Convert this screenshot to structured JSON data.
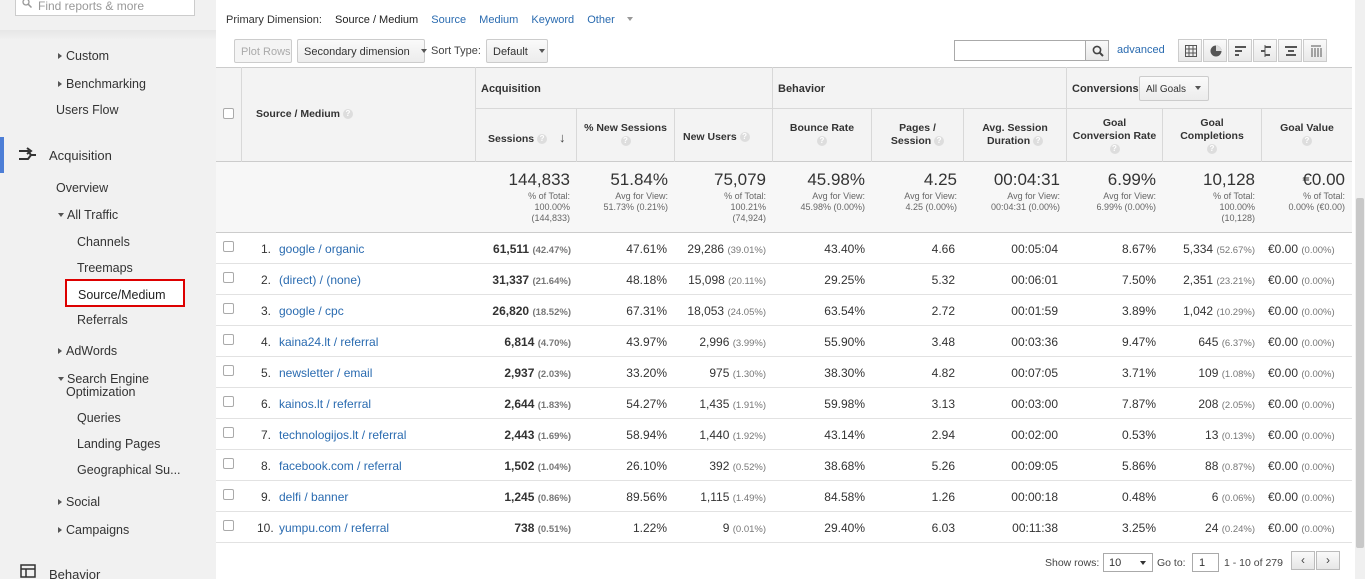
{
  "sidebar": {
    "search_placeholder": "Find reports & more",
    "custom": "Custom",
    "benchmarking": "Benchmarking",
    "users_flow": "Users Flow",
    "acquisition": "Acquisition",
    "overview": "Overview",
    "all_traffic": "All Traffic",
    "channels": "Channels",
    "treemaps": "Treemaps",
    "source_medium": "Source/Medium",
    "referrals": "Referrals",
    "adwords": "AdWords",
    "seo_line1": "Search Engine",
    "seo_line2": "Optimization",
    "queries": "Queries",
    "landing_pages": "Landing Pages",
    "geographical": "Geographical Su...",
    "social": "Social",
    "campaigns": "Campaigns",
    "behavior": "Behavior"
  },
  "dimension_row": {
    "label": "Primary Dimension:",
    "active": "Source / Medium",
    "options": [
      "Source",
      "Medium",
      "Keyword",
      "Other"
    ]
  },
  "toolbar": {
    "plot_rows": "Plot Rows",
    "secondary_dimension": "Secondary dimension",
    "sort_type_label": "Sort Type:",
    "sort_type_value": "Default",
    "advanced": "advanced",
    "view_icons": [
      "table-view-icon",
      "pie-view-icon",
      "performance-view-icon",
      "comparison-view-icon",
      "term-cloud-icon",
      "pivot-view-icon"
    ]
  },
  "table": {
    "source_medium_header": "Source / Medium",
    "groups": {
      "acquisition": "Acquisition",
      "behavior": "Behavior",
      "conversions": "Conversions",
      "goals_select": "All Goals"
    },
    "columns": {
      "sessions": "Sessions",
      "new_sessions": "% New Sessions",
      "new_users": "New Users",
      "bounce_rate": "Bounce Rate",
      "pages_session_1": "Pages /",
      "pages_session_2": "Session",
      "avg_duration_1": "Avg. Session",
      "avg_duration_2": "Duration",
      "goal_conv_1": "Goal",
      "goal_conv_2": "Conversion Rate",
      "goal_comp_1": "Goal",
      "goal_comp_2": "Completions",
      "goal_value": "Goal Value"
    },
    "totals": {
      "sessions": {
        "big": "144,833",
        "l1": "% of Total:",
        "l2": "100.00%",
        "l3": "(144,833)"
      },
      "new_sessions": {
        "big": "51.84%",
        "l1": "Avg for View:",
        "l2": "51.73% (0.21%)"
      },
      "new_users": {
        "big": "75,079",
        "l1": "% of Total:",
        "l2": "100.21%",
        "l3": "(74,924)"
      },
      "bounce_rate": {
        "big": "45.98%",
        "l1": "Avg for View:",
        "l2": "45.98% (0.00%)"
      },
      "pages_session": {
        "big": "4.25",
        "l1": "Avg for View:",
        "l2": "4.25 (0.00%)"
      },
      "avg_duration": {
        "big": "00:04:31",
        "l1": "Avg for View:",
        "l2": "00:04:31 (0.00%)"
      },
      "goal_conv": {
        "big": "6.99%",
        "l1": "Avg for View:",
        "l2": "6.99% (0.00%)"
      },
      "goal_comp": {
        "big": "10,128",
        "l1": "% of Total:",
        "l2": "100.00%",
        "l3": "(10,128)"
      },
      "goal_value": {
        "big": "€0.00",
        "l1": "% of Total:",
        "l2": "0.00% (€0.00)"
      }
    },
    "rows": [
      {
        "num": "1.",
        "source": "google / organic",
        "sessions": "61,511",
        "sessions_pct": "(42.47%)",
        "new_sessions": "47.61%",
        "new_users": "29,286",
        "new_users_pct": "(39.01%)",
        "bounce": "43.40%",
        "pages": "4.66",
        "duration": "00:05:04",
        "conv": "8.67%",
        "comp": "5,334",
        "comp_pct": "(52.67%)",
        "value": "€0.00",
        "value_pct": "(0.00%)"
      },
      {
        "num": "2.",
        "source": "(direct) / (none)",
        "sessions": "31,337",
        "sessions_pct": "(21.64%)",
        "new_sessions": "48.18%",
        "new_users": "15,098",
        "new_users_pct": "(20.11%)",
        "bounce": "29.25%",
        "pages": "5.32",
        "duration": "00:06:01",
        "conv": "7.50%",
        "comp": "2,351",
        "comp_pct": "(23.21%)",
        "value": "€0.00",
        "value_pct": "(0.00%)"
      },
      {
        "num": "3.",
        "source": "google / cpc",
        "sessions": "26,820",
        "sessions_pct": "(18.52%)",
        "new_sessions": "67.31%",
        "new_users": "18,053",
        "new_users_pct": "(24.05%)",
        "bounce": "63.54%",
        "pages": "2.72",
        "duration": "00:01:59",
        "conv": "3.89%",
        "comp": "1,042",
        "comp_pct": "(10.29%)",
        "value": "€0.00",
        "value_pct": "(0.00%)"
      },
      {
        "num": "4.",
        "source": "kaina24.lt / referral",
        "sessions": "6,814",
        "sessions_pct": "(4.70%)",
        "new_sessions": "43.97%",
        "new_users": "2,996",
        "new_users_pct": "(3.99%)",
        "bounce": "55.90%",
        "pages": "3.48",
        "duration": "00:03:36",
        "conv": "9.47%",
        "comp": "645",
        "comp_pct": "(6.37%)",
        "value": "€0.00",
        "value_pct": "(0.00%)"
      },
      {
        "num": "5.",
        "source": "newsletter / email",
        "sessions": "2,937",
        "sessions_pct": "(2.03%)",
        "new_sessions": "33.20%",
        "new_users": "975",
        "new_users_pct": "(1.30%)",
        "bounce": "38.30%",
        "pages": "4.82",
        "duration": "00:07:05",
        "conv": "3.71%",
        "comp": "109",
        "comp_pct": "(1.08%)",
        "value": "€0.00",
        "value_pct": "(0.00%)"
      },
      {
        "num": "6.",
        "source": "kainos.lt / referral",
        "sessions": "2,644",
        "sessions_pct": "(1.83%)",
        "new_sessions": "54.27%",
        "new_users": "1,435",
        "new_users_pct": "(1.91%)",
        "bounce": "59.98%",
        "pages": "3.13",
        "duration": "00:03:00",
        "conv": "7.87%",
        "comp": "208",
        "comp_pct": "(2.05%)",
        "value": "€0.00",
        "value_pct": "(0.00%)"
      },
      {
        "num": "7.",
        "source": "technologijos.lt / referral",
        "sessions": "2,443",
        "sessions_pct": "(1.69%)",
        "new_sessions": "58.94%",
        "new_users": "1,440",
        "new_users_pct": "(1.92%)",
        "bounce": "43.14%",
        "pages": "2.94",
        "duration": "00:02:00",
        "conv": "0.53%",
        "comp": "13",
        "comp_pct": "(0.13%)",
        "value": "€0.00",
        "value_pct": "(0.00%)"
      },
      {
        "num": "8.",
        "source": "facebook.com / referral",
        "sessions": "1,502",
        "sessions_pct": "(1.04%)",
        "new_sessions": "26.10%",
        "new_users": "392",
        "new_users_pct": "(0.52%)",
        "bounce": "38.68%",
        "pages": "5.26",
        "duration": "00:09:05",
        "conv": "5.86%",
        "comp": "88",
        "comp_pct": "(0.87%)",
        "value": "€0.00",
        "value_pct": "(0.00%)"
      },
      {
        "num": "9.",
        "source": "delfi / banner",
        "sessions": "1,245",
        "sessions_pct": "(0.86%)",
        "new_sessions": "89.56%",
        "new_users": "1,115",
        "new_users_pct": "(1.49%)",
        "bounce": "84.58%",
        "pages": "1.26",
        "duration": "00:00:18",
        "conv": "0.48%",
        "comp": "6",
        "comp_pct": "(0.06%)",
        "value": "€0.00",
        "value_pct": "(0.00%)"
      },
      {
        "num": "10.",
        "source": "yumpu.com / referral",
        "sessions": "738",
        "sessions_pct": "(0.51%)",
        "new_sessions": "1.22%",
        "new_users": "9",
        "new_users_pct": "(0.01%)",
        "bounce": "29.40%",
        "pages": "6.03",
        "duration": "00:11:38",
        "conv": "3.25%",
        "comp": "24",
        "comp_pct": "(0.24%)",
        "value": "€0.00",
        "value_pct": "(0.00%)"
      }
    ]
  },
  "footer": {
    "show_rows_label": "Show rows:",
    "show_rows_value": "10",
    "goto_label": "Go to:",
    "goto_value": "1",
    "range": "1 - 10 of 279",
    "prev": "‹",
    "next": "›"
  }
}
